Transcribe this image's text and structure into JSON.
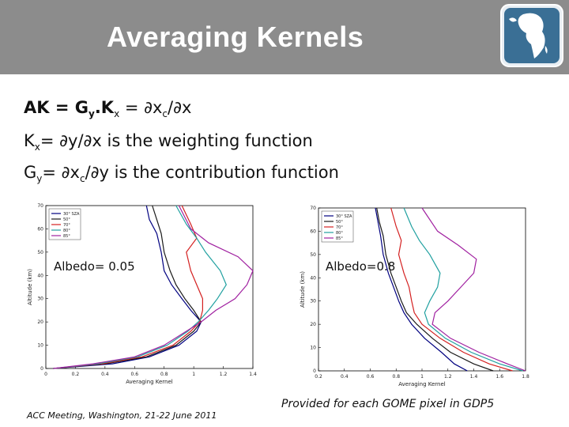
{
  "slide": {
    "title": "Averaging Kernels",
    "line1": {
      "main": "AK = G",
      "sub_y": "y",
      "dotk": ".K",
      "sub_x": "x",
      "rest": " = ∂x",
      "sub_c": "c",
      "tail": "/∂x"
    },
    "line2": {
      "k": "K",
      "sub_x": "x",
      "rest": "= ∂y/∂x is the weighting function"
    },
    "line3": {
      "g": "G",
      "sub_y": "y",
      "rest1": "= ∂x",
      "sub_c": "c",
      "rest2": "/∂y is the contribution function"
    },
    "albedo_left": "Albedo= 0.05",
    "albedo_right": "Albedo=0.8",
    "footer_left": "ACC Meeting, Washington, 21-22 June 2011",
    "footer_right": "Provided for each GOME pixel in GDP5"
  },
  "colors": {
    "title_bar": "#8c8c8c",
    "logo_bg": "#3a6f95"
  },
  "chart_data": [
    {
      "type": "line",
      "xlabel": "Averaging Kernel",
      "ylabel": "Altitude (km)",
      "xlim": [
        0,
        1.4
      ],
      "ylim": [
        0,
        70
      ],
      "xticks": [
        "0",
        "0.2",
        "0.4",
        "0.6",
        "0.8",
        "1",
        "1.2",
        "1.4"
      ],
      "yticks": [
        "0",
        "10",
        "20",
        "30",
        "40",
        "50",
        "60",
        "70"
      ],
      "legend": [
        "30° SZA",
        "50°",
        "70°",
        "80°",
        "85°"
      ],
      "series": [
        {
          "name": "30° SZA",
          "color": "#000080",
          "points": [
            [
              0.05,
              0
            ],
            [
              0.45,
              2
            ],
            [
              0.7,
              5
            ],
            [
              0.9,
              10
            ],
            [
              1.02,
              16
            ],
            [
              1.05,
              20
            ],
            [
              0.98,
              25
            ],
            [
              0.92,
              30
            ],
            [
              0.85,
              36
            ],
            [
              0.8,
              42
            ],
            [
              0.78,
              50
            ],
            [
              0.75,
              58
            ],
            [
              0.7,
              64
            ],
            [
              0.68,
              70
            ]
          ]
        },
        {
          "name": "50°",
          "color": "#1a1a1a",
          "points": [
            [
              0.05,
              0
            ],
            [
              0.4,
              2
            ],
            [
              0.68,
              5
            ],
            [
              0.88,
              10
            ],
            [
              1.0,
              16
            ],
            [
              1.05,
              20
            ],
            [
              1.0,
              25
            ],
            [
              0.94,
              30
            ],
            [
              0.88,
              36
            ],
            [
              0.84,
              42
            ],
            [
              0.8,
              50
            ],
            [
              0.78,
              58
            ],
            [
              0.75,
              64
            ],
            [
              0.72,
              70
            ]
          ]
        },
        {
          "name": "70°",
          "color": "#d42020",
          "points": [
            [
              0.05,
              0
            ],
            [
              0.38,
              2
            ],
            [
              0.65,
              5
            ],
            [
              0.86,
              10
            ],
            [
              0.98,
              16
            ],
            [
              1.04,
              20
            ],
            [
              1.06,
              25
            ],
            [
              1.06,
              30
            ],
            [
              1.02,
              36
            ],
            [
              0.98,
              42
            ],
            [
              0.95,
              50
            ],
            [
              1.02,
              56
            ],
            [
              0.98,
              62
            ],
            [
              0.92,
              70
            ]
          ]
        },
        {
          "name": "80°",
          "color": "#20a0a0",
          "points": [
            [
              0.05,
              0
            ],
            [
              0.35,
              2
            ],
            [
              0.62,
              5
            ],
            [
              0.82,
              10
            ],
            [
              0.96,
              16
            ],
            [
              1.03,
              20
            ],
            [
              1.1,
              25
            ],
            [
              1.16,
              30
            ],
            [
              1.22,
              36
            ],
            [
              1.18,
              42
            ],
            [
              1.08,
              50
            ],
            [
              1.02,
              56
            ],
            [
              0.95,
              62
            ],
            [
              0.88,
              70
            ]
          ]
        },
        {
          "name": "85°",
          "color": "#a020a0",
          "points": [
            [
              0.05,
              0
            ],
            [
              0.32,
              2
            ],
            [
              0.6,
              5
            ],
            [
              0.8,
              10
            ],
            [
              0.95,
              16
            ],
            [
              1.05,
              20
            ],
            [
              1.15,
              25
            ],
            [
              1.28,
              30
            ],
            [
              1.36,
              36
            ],
            [
              1.4,
              42
            ],
            [
              1.3,
              48
            ],
            [
              1.1,
              54
            ],
            [
              0.98,
              60
            ],
            [
              0.9,
              70
            ]
          ]
        }
      ]
    },
    {
      "type": "line",
      "xlabel": "Averaging Kernel",
      "ylabel": "Altitude (km)",
      "xlim": [
        0.2,
        1.8
      ],
      "ylim": [
        0,
        70
      ],
      "xticks": [
        "0.2",
        "0.4",
        "0.6",
        "0.8",
        "1",
        "1.2",
        "1.4",
        "1.6",
        "1.8"
      ],
      "yticks": [
        "0",
        "10",
        "20",
        "30",
        "40",
        "50",
        "60",
        "70"
      ],
      "legend": [
        "30° SZA",
        "50°",
        "70°",
        "80°",
        "85°"
      ],
      "series": [
        {
          "name": "30° SZA",
          "color": "#000080",
          "points": [
            [
              1.35,
              0
            ],
            [
              1.25,
              3
            ],
            [
              1.15,
              8
            ],
            [
              1.02,
              14
            ],
            [
              0.92,
              20
            ],
            [
              0.86,
              25
            ],
            [
              0.82,
              30
            ],
            [
              0.78,
              36
            ],
            [
              0.74,
              42
            ],
            [
              0.7,
              50
            ],
            [
              0.68,
              58
            ],
            [
              0.66,
              64
            ],
            [
              0.64,
              70
            ]
          ]
        },
        {
          "name": "50°",
          "color": "#1a1a1a",
          "points": [
            [
              1.55,
              0
            ],
            [
              1.4,
              3
            ],
            [
              1.22,
              8
            ],
            [
              1.08,
              14
            ],
            [
              0.96,
              20
            ],
            [
              0.88,
              25
            ],
            [
              0.84,
              30
            ],
            [
              0.8,
              36
            ],
            [
              0.76,
              42
            ],
            [
              0.72,
              50
            ],
            [
              0.7,
              58
            ],
            [
              0.67,
              64
            ],
            [
              0.65,
              70
            ]
          ]
        },
        {
          "name": "70°",
          "color": "#d42020",
          "points": [
            [
              1.7,
              0
            ],
            [
              1.52,
              3
            ],
            [
              1.32,
              8
            ],
            [
              1.14,
              14
            ],
            [
              1.0,
              20
            ],
            [
              0.94,
              25
            ],
            [
              0.92,
              30
            ],
            [
              0.9,
              36
            ],
            [
              0.86,
              42
            ],
            [
              0.82,
              50
            ],
            [
              0.84,
              56
            ],
            [
              0.8,
              62
            ],
            [
              0.76,
              70
            ]
          ]
        },
        {
          "name": "80°",
          "color": "#20a0a0",
          "points": [
            [
              1.78,
              0
            ],
            [
              1.6,
              3
            ],
            [
              1.38,
              8
            ],
            [
              1.18,
              14
            ],
            [
              1.05,
              20
            ],
            [
              1.02,
              25
            ],
            [
              1.06,
              30
            ],
            [
              1.12,
              36
            ],
            [
              1.14,
              42
            ],
            [
              1.06,
              50
            ],
            [
              0.98,
              56
            ],
            [
              0.92,
              62
            ],
            [
              0.86,
              70
            ]
          ]
        },
        {
          "name": "85°",
          "color": "#a020a0",
          "points": [
            [
              1.8,
              0
            ],
            [
              1.66,
              3
            ],
            [
              1.44,
              8
            ],
            [
              1.22,
              14
            ],
            [
              1.08,
              20
            ],
            [
              1.1,
              25
            ],
            [
              1.2,
              30
            ],
            [
              1.3,
              36
            ],
            [
              1.4,
              42
            ],
            [
              1.42,
              48
            ],
            [
              1.28,
              54
            ],
            [
              1.12,
              60
            ],
            [
              1.0,
              70
            ]
          ]
        }
      ]
    }
  ]
}
